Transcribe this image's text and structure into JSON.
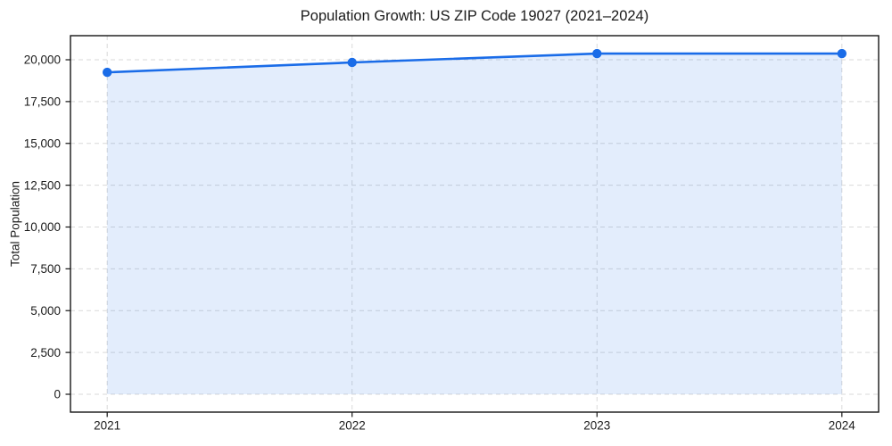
{
  "figure": {
    "title": "Population Growth: US ZIP Code 19027 (2021–2024)",
    "ylabel": "Total Population"
  },
  "chart_data": {
    "type": "area",
    "categories": [
      2021,
      2022,
      2023,
      2024
    ],
    "series": [
      {
        "name": "Total Population",
        "values": [
          19250,
          19840,
          20370,
          20370
        ]
      }
    ],
    "title": "Population Growth: US ZIP Code 19027 (2021–2024)",
    "xlabel": "",
    "ylabel": "Total Population",
    "xtick_labels": [
      "2021",
      "2022",
      "2023",
      "2024"
    ],
    "yticks": [
      0,
      2500,
      5000,
      7500,
      10000,
      12500,
      15000,
      17500,
      20000
    ],
    "ytick_labels": [
      "0",
      "2,500",
      "5,000",
      "7,500",
      "10,000",
      "12,500",
      "15,000",
      "17,500",
      "20,000"
    ],
    "xlim": [
      2020.85,
      2024.15
    ],
    "ylim": [
      -1067,
      21440
    ],
    "grid": true,
    "grid_style": "dashed",
    "legend": "none",
    "colors": {
      "line": "#1a6ce8",
      "marker": "#1a6ce8",
      "area_fill": "rgba(26,108,232,0.12)",
      "gridline": "#d9d9d9",
      "spine": "#151515",
      "tick": "#151515",
      "text": "#1a1a1a",
      "background": "#ffffff"
    }
  }
}
